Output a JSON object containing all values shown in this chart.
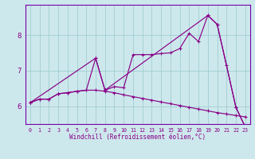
{
  "xlabel": "Windchill (Refroidissement éolien,°C)",
  "bg_color": "#cde8ec",
  "grid_color": "#a0cdd4",
  "line_color": "#880088",
  "spine_color": "#7700aa",
  "ylim": [
    5.5,
    8.85
  ],
  "xlim": [
    -0.5,
    23.5
  ],
  "yticks": [
    6,
    7,
    8
  ],
  "xticks": [
    0,
    1,
    2,
    3,
    4,
    5,
    6,
    7,
    8,
    9,
    10,
    11,
    12,
    13,
    14,
    15,
    16,
    17,
    18,
    19,
    20,
    21,
    22,
    23
  ],
  "series1_x": [
    0,
    1,
    2,
    3,
    4,
    5,
    6,
    7,
    8,
    9,
    10,
    11,
    12,
    13,
    14,
    15,
    16,
    17,
    18,
    19,
    20,
    21,
    22,
    23
  ],
  "series1_y": [
    6.1,
    6.2,
    6.2,
    6.35,
    6.38,
    6.42,
    6.45,
    6.45,
    6.42,
    6.38,
    6.32,
    6.27,
    6.22,
    6.17,
    6.12,
    6.07,
    6.02,
    5.97,
    5.92,
    5.87,
    5.82,
    5.78,
    5.74,
    5.7
  ],
  "series2_x": [
    0,
    1,
    2,
    3,
    4,
    5,
    6,
    7,
    8,
    9,
    10,
    11,
    12,
    13,
    14,
    15,
    16,
    17,
    18,
    19,
    20,
    21,
    22,
    23
  ],
  "series2_y": [
    6.1,
    6.2,
    6.2,
    6.35,
    6.38,
    6.42,
    6.45,
    7.35,
    6.45,
    6.55,
    6.52,
    7.45,
    7.45,
    7.45,
    7.48,
    7.5,
    7.62,
    8.05,
    7.82,
    8.55,
    8.3,
    7.15,
    5.97,
    5.42
  ],
  "series3_x": [
    0,
    7,
    8,
    19,
    20,
    22,
    23
  ],
  "series3_y": [
    6.1,
    7.35,
    6.45,
    8.55,
    8.3,
    5.97,
    5.42
  ]
}
